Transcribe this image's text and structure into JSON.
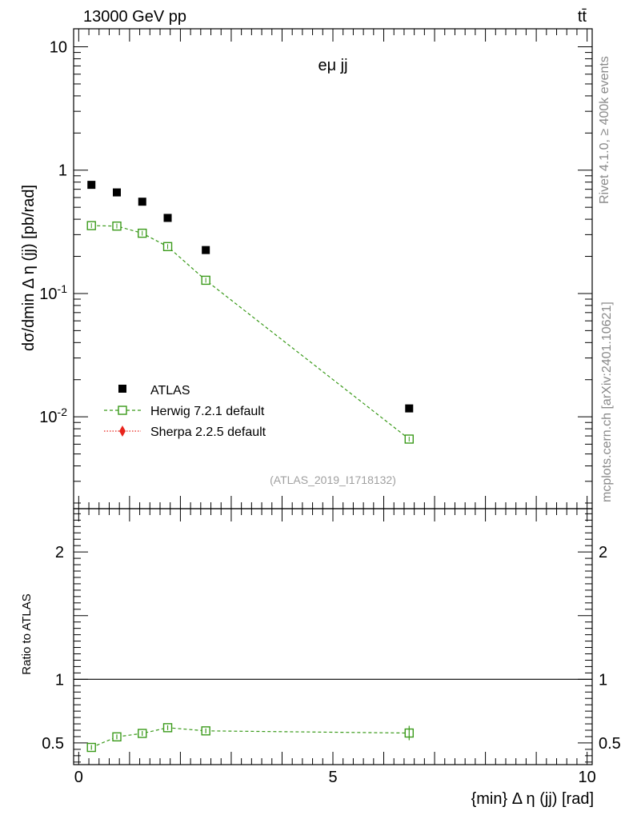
{
  "header": {
    "left": "13000 GeV pp",
    "right": "tt̄"
  },
  "side_text": {
    "rivet": "Rivet 4.1.0, ≥ 400k events",
    "source": "mcplots.cern.ch [arXiv:2401.10621]"
  },
  "chart_data": [
    {
      "type": "scatter",
      "panel": "main",
      "title": "eμ jj",
      "watermark": "(ATLAS_2019_I1718132)",
      "ylabel": "dσ/dmin Δ η (jj) [pb/rad]",
      "yscale": "log",
      "ylim": [
        0.0018,
        14
      ],
      "xlim": [
        -0.1,
        10.1
      ],
      "ytick_labels": [
        "10",
        "1",
        "10^-1",
        "10^-2"
      ],
      "ytick_values": [
        10,
        1,
        0.1,
        0.01
      ],
      "legend_position": "lower-left",
      "series": [
        {
          "name": "ATLAS",
          "style": "black-filled-square",
          "x": [
            0.25,
            0.75,
            1.25,
            1.75,
            2.5,
            6.5
          ],
          "y": [
            0.76,
            0.66,
            0.555,
            0.41,
            0.225,
            0.0117
          ]
        },
        {
          "name": "Herwig 7.2.1 default",
          "style": "green-open-square-dashed",
          "color": "#3a9a1a",
          "x": [
            0.25,
            0.75,
            1.25,
            1.75,
            2.5,
            6.5
          ],
          "y": [
            0.355,
            0.352,
            0.308,
            0.24,
            0.128,
            0.0066
          ]
        },
        {
          "name": "Sherpa 2.2.5 default",
          "style": "red-diamond-dotted",
          "color": "#e8241c",
          "x": [],
          "y": []
        }
      ]
    },
    {
      "type": "line",
      "panel": "ratio",
      "ylabel": "Ratio to ATLAS",
      "xlabel": "{min} Δ η (jj) [rad]",
      "ylim": [
        0.33,
        2.34
      ],
      "xlim": [
        -0.1,
        10.1
      ],
      "ytick_labels": [
        "0.5",
        "1",
        "2"
      ],
      "ytick_values": [
        0.5,
        1,
        2
      ],
      "xtick_labels": [
        "0",
        "5",
        "10"
      ],
      "xtick_values": [
        0,
        5,
        10
      ],
      "reference_line": 1,
      "series": [
        {
          "name": "Herwig 7.2.1 default",
          "color": "#3a9a1a",
          "x": [
            0.25,
            0.75,
            1.25,
            1.75,
            2.5,
            6.5
          ],
          "y": [
            0.465,
            0.548,
            0.575,
            0.62,
            0.595,
            0.578
          ]
        }
      ]
    }
  ]
}
